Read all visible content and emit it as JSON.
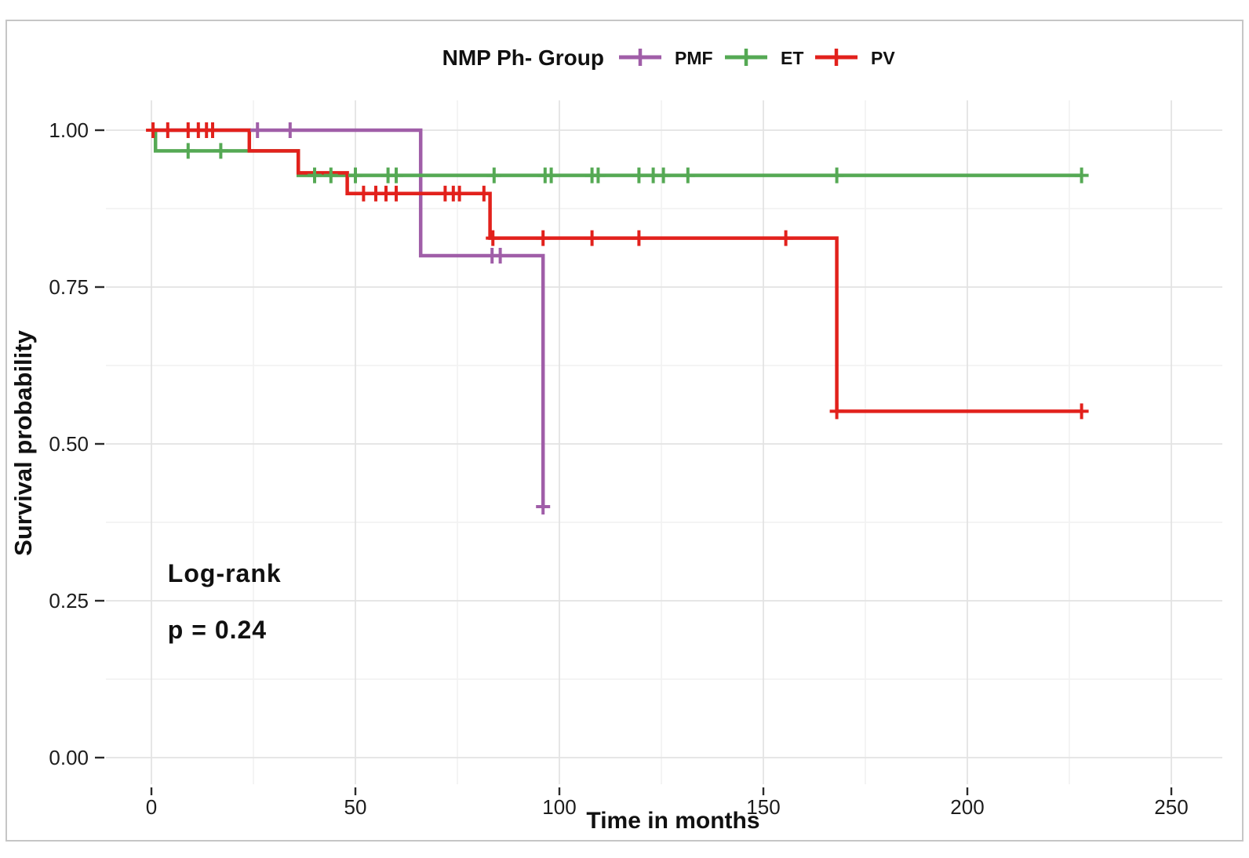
{
  "figure": {
    "frame_color": "#c6c6c6",
    "background": "#ffffff"
  },
  "chart_data": {
    "type": "line",
    "subtype": "kaplan-meier-step",
    "title": "",
    "legend_title": "NMP Ph- Group",
    "legend_position": "top",
    "xlabel": "Time in months",
    "ylabel": "Survival probability",
    "xlim": [
      0,
      250
    ],
    "ylim": [
      0,
      1
    ],
    "xticks": [
      0,
      50,
      100,
      150,
      200,
      250
    ],
    "yticks": [
      0,
      0.25,
      0.5,
      0.75,
      1
    ],
    "ytick_labels": [
      "0.00",
      "0.25",
      "0.50",
      "0.75",
      "1.00"
    ],
    "grid": {
      "major": true,
      "minor": true,
      "major_color": "#e3e3e3",
      "minor_color": "#f1f1f1"
    },
    "annotations": [
      {
        "text": "Log-rank",
        "x_month": 4,
        "y_prob": 0.28
      },
      {
        "text": "p = 0.24",
        "x_month": 4,
        "y_prob": 0.19
      }
    ],
    "text_color": "#1d1d1d",
    "series": [
      {
        "name": "PMF",
        "color": "#A05EA8",
        "steps": [
          [
            0,
            1.0
          ],
          [
            66,
            1.0
          ],
          [
            66,
            0.8
          ],
          [
            96,
            0.8
          ],
          [
            96,
            0.4
          ]
        ],
        "censors": [
          [
            26,
            1.0
          ],
          [
            34,
            1.0
          ],
          [
            83.5,
            0.8
          ],
          [
            85.5,
            0.8
          ],
          [
            96,
            0.4
          ]
        ]
      },
      {
        "name": "ET",
        "color": "#55A954",
        "steps": [
          [
            0,
            1.0
          ],
          [
            1,
            1.0
          ],
          [
            1,
            0.967
          ],
          [
            36,
            0.967
          ],
          [
            36,
            0.928
          ],
          [
            228,
            0.928
          ]
        ],
        "censors": [
          [
            9,
            0.967
          ],
          [
            17,
            0.967
          ],
          [
            40,
            0.928
          ],
          [
            44,
            0.928
          ],
          [
            50,
            0.928
          ],
          [
            58,
            0.928
          ],
          [
            60,
            0.928
          ],
          [
            84,
            0.928
          ],
          [
            96.5,
            0.928
          ],
          [
            98,
            0.928
          ],
          [
            108,
            0.928
          ],
          [
            109.5,
            0.928
          ],
          [
            119.5,
            0.928
          ],
          [
            123,
            0.928
          ],
          [
            125.5,
            0.928
          ],
          [
            131.5,
            0.928
          ],
          [
            168,
            0.928
          ],
          [
            228,
            0.928
          ]
        ]
      },
      {
        "name": "PV",
        "color": "#E2211C",
        "steps": [
          [
            0,
            1.0
          ],
          [
            24,
            1.0
          ],
          [
            24,
            0.967
          ],
          [
            36,
            0.967
          ],
          [
            36,
            0.932
          ],
          [
            48,
            0.932
          ],
          [
            48,
            0.899
          ],
          [
            83,
            0.899
          ],
          [
            83,
            0.828
          ],
          [
            168,
            0.828
          ],
          [
            168,
            0.552
          ],
          [
            228,
            0.552
          ]
        ],
        "censors": [
          [
            0.4,
            1.0
          ],
          [
            4,
            1.0
          ],
          [
            9,
            1.0
          ],
          [
            11.5,
            1.0
          ],
          [
            13.5,
            1.0
          ],
          [
            15,
            1.0
          ],
          [
            52,
            0.899
          ],
          [
            55,
            0.899
          ],
          [
            57.5,
            0.899
          ],
          [
            60,
            0.899
          ],
          [
            72,
            0.899
          ],
          [
            74,
            0.899
          ],
          [
            75.5,
            0.899
          ],
          [
            81.5,
            0.899
          ],
          [
            83.7,
            0.828
          ],
          [
            96,
            0.828
          ],
          [
            108,
            0.828
          ],
          [
            119.5,
            0.828
          ],
          [
            155.5,
            0.828
          ],
          [
            168,
            0.552
          ],
          [
            228,
            0.552
          ]
        ]
      }
    ]
  }
}
